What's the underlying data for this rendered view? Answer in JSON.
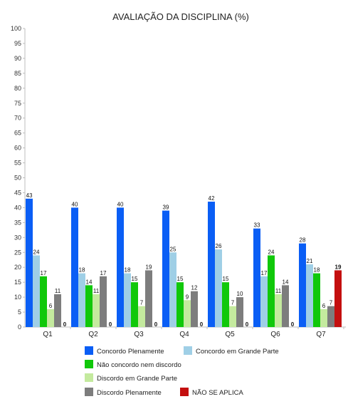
{
  "chart_data": {
    "type": "bar",
    "title": "AVALIAÇÃO DA DISCIPLINA (%)",
    "xlabel": "",
    "ylabel": "",
    "ylim": [
      0,
      100
    ],
    "yticks": [
      0,
      5,
      10,
      15,
      20,
      25,
      30,
      35,
      40,
      45,
      50,
      55,
      60,
      65,
      70,
      75,
      80,
      85,
      90,
      95,
      100
    ],
    "grid": false,
    "legend_position": "bottom",
    "categories": [
      "Q1",
      "Q2",
      "Q3",
      "Q4",
      "Q5",
      "Q6",
      "Q7"
    ],
    "series": [
      {
        "name": "Concordo Plenamente",
        "color": "#0a5ef5",
        "values": [
          43,
          40,
          40,
          39,
          42,
          33,
          28
        ]
      },
      {
        "name": "Concordo em Grande Parte",
        "color": "#9fcfe6",
        "values": [
          24,
          18,
          18,
          25,
          26,
          17,
          21
        ]
      },
      {
        "name": "Não concordo nem discordo",
        "color": "#10c80a",
        "values": [
          17,
          14,
          15,
          15,
          15,
          24,
          18
        ]
      },
      {
        "name": "Discordo em Grande Parte",
        "color": "#c4ea9e",
        "values": [
          6,
          11,
          7,
          9,
          7,
          11,
          6
        ]
      },
      {
        "name": "Discordo Plenamente",
        "color": "#7d7d7d",
        "values": [
          11,
          17,
          19,
          12,
          10,
          14,
          7
        ]
      },
      {
        "name": "NÃO SE APLICA",
        "color": "#c40f0f",
        "values": [
          0,
          0,
          0,
          0,
          0,
          0,
          19
        ]
      }
    ]
  }
}
